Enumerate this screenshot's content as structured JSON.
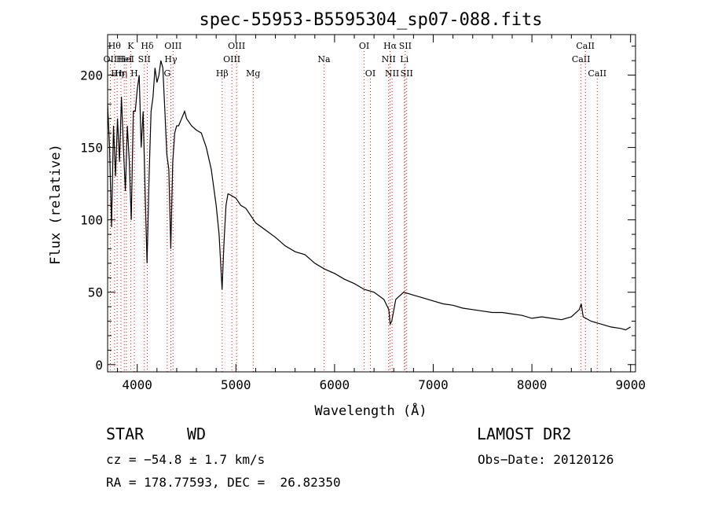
{
  "chart_data": {
    "type": "line",
    "title": "spec-55953-B5595304_sp07-088.fits",
    "xlabel": "Wavelength (Å)",
    "ylabel": "Flux (relative)",
    "xlim": [
      3700,
      9050
    ],
    "ylim": [
      -5,
      228
    ],
    "xticks": [
      4000,
      5000,
      6000,
      7000,
      8000,
      9000
    ],
    "yticks": [
      0,
      50,
      100,
      150,
      200
    ],
    "grid": false,
    "line_color": "#000000",
    "marker_color": "#ff0000",
    "spectrum": {
      "x": [
        3700,
        3720,
        3740,
        3760,
        3780,
        3800,
        3820,
        3840,
        3860,
        3880,
        3900,
        3920,
        3940,
        3960,
        3980,
        4000,
        4020,
        4040,
        4060,
        4080,
        4100,
        4120,
        4140,
        4160,
        4180,
        4200,
        4220,
        4240,
        4260,
        4280,
        4300,
        4320,
        4340,
        4360,
        4380,
        4400,
        4420,
        4450,
        4480,
        4500,
        4550,
        4600,
        4650,
        4700,
        4750,
        4800,
        4830,
        4860,
        4880,
        4900,
        4920,
        4950,
        5000,
        5050,
        5100,
        5200,
        5300,
        5400,
        5500,
        5600,
        5700,
        5800,
        5900,
        6000,
        6100,
        6200,
        6300,
        6400,
        6500,
        6550,
        6563,
        6580,
        6620,
        6700,
        6800,
        6900,
        7000,
        7100,
        7200,
        7300,
        7400,
        7500,
        7600,
        7700,
        7800,
        7900,
        8000,
        8100,
        8200,
        8300,
        8400,
        8480,
        8500,
        8520,
        8600,
        8700,
        8800,
        8900,
        8950,
        9000
      ],
      "y": [
        180,
        150,
        95,
        165,
        130,
        170,
        140,
        185,
        150,
        120,
        165,
        140,
        100,
        175,
        175,
        190,
        200,
        150,
        175,
        120,
        70,
        130,
        175,
        185,
        205,
        195,
        200,
        210,
        205,
        175,
        145,
        135,
        80,
        140,
        160,
        165,
        165,
        170,
        175,
        170,
        165,
        162,
        160,
        150,
        135,
        110,
        90,
        52,
        85,
        110,
        118,
        117,
        115,
        110,
        108,
        98,
        93,
        88,
        82,
        78,
        76,
        70,
        66,
        63,
        59,
        56,
        52,
        50,
        45,
        38,
        28,
        30,
        45,
        50,
        48,
        46,
        44,
        42,
        41,
        39,
        38,
        37,
        36,
        36,
        35,
        34,
        32,
        33,
        32,
        31,
        33,
        38,
        42,
        33,
        30,
        28,
        26,
        25,
        24,
        26
      ]
    },
    "markers": [
      {
        "wl": 3727,
        "row": 1,
        "label": "OII"
      },
      {
        "wl": 3770,
        "row": 0,
        "label": "Hθ"
      },
      {
        "wl": 3797,
        "row": 2,
        "label": "Hη"
      },
      {
        "wl": 3835,
        "row": 2,
        "label": "Hη"
      },
      {
        "wl": 3869,
        "row": 1,
        "label": "HeI"
      },
      {
        "wl": 3889,
        "row": 1,
        "label": "HeI"
      },
      {
        "wl": 3934,
        "row": 0,
        "label": "K"
      },
      {
        "wl": 3970,
        "row": 2,
        "label": "H"
      },
      {
        "wl": 4072,
        "row": 1,
        "label": "SII"
      },
      {
        "wl": 4102,
        "row": 0,
        "label": "Hδ"
      },
      {
        "wl": 4304,
        "row": 2,
        "label": "G"
      },
      {
        "wl": 4341,
        "row": 1,
        "label": "Hγ"
      },
      {
        "wl": 4363,
        "row": 0,
        "label": "OIII"
      },
      {
        "wl": 4861,
        "row": 2,
        "label": "Hβ"
      },
      {
        "wl": 4959,
        "row": 1,
        "label": "OIII"
      },
      {
        "wl": 5007,
        "row": 0,
        "label": "OIII"
      },
      {
        "wl": 5175,
        "row": 2,
        "label": "Mg"
      },
      {
        "wl": 5893,
        "row": 1,
        "label": "Na"
      },
      {
        "wl": 6300,
        "row": 0,
        "label": "OI"
      },
      {
        "wl": 6363,
        "row": 2,
        "label": "OI"
      },
      {
        "wl": 6548,
        "row": 1,
        "label": "NII"
      },
      {
        "wl": 6563,
        "row": 0,
        "label": "Hα"
      },
      {
        "wl": 6583,
        "row": 2,
        "label": "NII"
      },
      {
        "wl": 6707,
        "row": 1,
        "label": "Li"
      },
      {
        "wl": 6716,
        "row": 0,
        "label": "SII"
      },
      {
        "wl": 6731,
        "row": 2,
        "label": "SII"
      },
      {
        "wl": 8498,
        "row": 1,
        "label": "CaII"
      },
      {
        "wl": 8542,
        "row": 0,
        "label": "CaII"
      },
      {
        "wl": 8662,
        "row": 2,
        "label": "CaII"
      }
    ]
  },
  "info": {
    "class": "STAR",
    "subclass": "WD",
    "survey": "LAMOST DR2",
    "cz": "cz = −54.8 ± 1.7 km/s",
    "obs_date": "Obs−Date: 20120126",
    "radec": "RA = 178.77593, DEC =  26.82350"
  }
}
